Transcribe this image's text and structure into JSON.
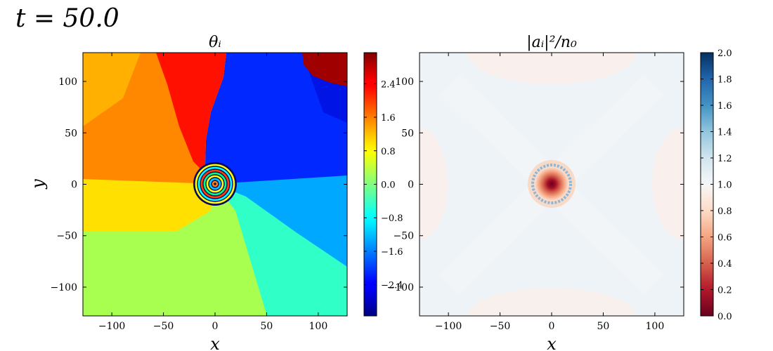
{
  "time_label": "t = 50.0",
  "chart_data": [
    {
      "type": "heatmap",
      "title": "θᵢ",
      "xlabel": "x",
      "ylabel": "y",
      "xlim": [
        -128,
        128
      ],
      "ylim": [
        -128,
        128
      ],
      "xticks": [
        -100,
        -50,
        0,
        50,
        100
      ],
      "yticks": [
        -100,
        -50,
        0,
        50,
        100
      ],
      "xtick_labels": [
        "−100",
        "−50",
        "0",
        "50",
        "100"
      ],
      "ytick_labels": [
        "−100",
        "−50",
        "0",
        "50",
        "100"
      ],
      "colormap": "jet",
      "colorbar": {
        "range": [
          -3.1416,
          3.1416
        ],
        "ticks": [
          -2.4,
          -1.6,
          -0.8,
          0.0,
          0.8,
          1.6,
          2.4
        ],
        "tick_labels": [
          "−2.4",
          "−1.6",
          "−0.8",
          "0.0",
          "0.8",
          "1.6",
          "2.4"
        ]
      },
      "features": {
        "vortex_center": [
          0,
          0
        ],
        "core_radius": 20
      }
    },
    {
      "type": "heatmap",
      "title": "|aᵢ|²/n₀",
      "xlabel": "x",
      "ylabel": "",
      "xlim": [
        -128,
        128
      ],
      "ylim": [
        -128,
        128
      ],
      "xticks": [
        -100,
        -50,
        0,
        50,
        100
      ],
      "yticks": [
        -100,
        -50,
        0,
        50,
        100
      ],
      "xtick_labels": [
        "−100",
        "−50",
        "0",
        "50",
        "100"
      ],
      "ytick_labels": [
        "−100",
        "−50",
        "0",
        "50",
        "100"
      ],
      "colormap": "RdBu",
      "colorbar": {
        "range": [
          0.0,
          2.0
        ],
        "ticks": [
          0.0,
          0.2,
          0.4,
          0.6,
          0.8,
          1.0,
          1.2,
          1.4,
          1.6,
          1.8,
          2.0
        ],
        "tick_labels": [
          "0.0",
          "0.2",
          "0.4",
          "0.6",
          "0.8",
          "1.0",
          "1.2",
          "1.4",
          "1.6",
          "1.8",
          "2.0"
        ]
      },
      "features": {
        "vortex_center": [
          0,
          0
        ],
        "core_radius": 22,
        "background_density": 1.0
      }
    }
  ]
}
